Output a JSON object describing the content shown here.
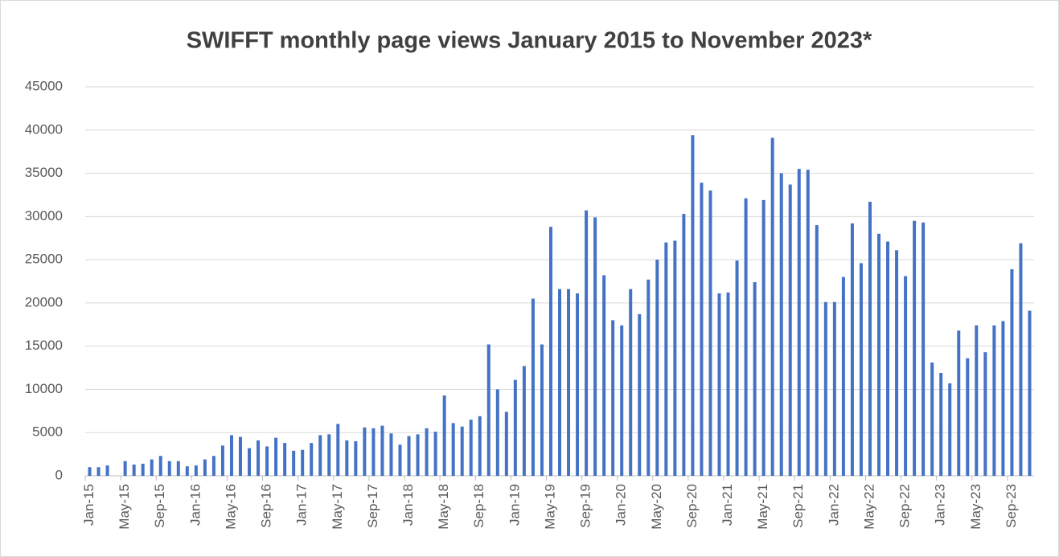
{
  "chart_data": {
    "type": "bar",
    "title": "SWIFFT monthly page views January 2015 to November 2023*",
    "categories": [
      "Jan-15",
      null,
      null,
      null,
      "May-15",
      null,
      null,
      null,
      "Sep-15",
      null,
      null,
      null,
      "Jan-16",
      null,
      null,
      null,
      "May-16",
      null,
      null,
      null,
      "Sep-16",
      null,
      null,
      null,
      "Jan-17",
      null,
      null,
      null,
      "May-17",
      null,
      null,
      null,
      "Sep-17",
      null,
      null,
      null,
      "Jan-18",
      null,
      null,
      null,
      "May-18",
      null,
      null,
      null,
      "Sep-18",
      null,
      null,
      null,
      "Jan-19",
      null,
      null,
      null,
      "May-19",
      null,
      null,
      null,
      "Sep-19",
      null,
      null,
      null,
      "Jan-20",
      null,
      null,
      null,
      "May-20",
      null,
      null,
      null,
      "Sep-20",
      null,
      null,
      null,
      "Jan-21",
      null,
      null,
      null,
      "May-21",
      null,
      null,
      null,
      "Sep-21",
      null,
      null,
      null,
      "Jan-22",
      null,
      null,
      null,
      "May-22",
      null,
      null,
      null,
      "Sep-22",
      null,
      null,
      null,
      "Jan-23",
      null,
      null,
      null,
      "May-23",
      null,
      null,
      null,
      "Sep-23",
      null,
      null
    ],
    "values": [
      1000,
      1000,
      1200,
      0,
      1700,
      1300,
      1400,
      1900,
      2300,
      1700,
      1700,
      1100,
      1200,
      1900,
      2300,
      3500,
      4700,
      4500,
      3200,
      4100,
      3400,
      4400,
      3800,
      2900,
      3000,
      3800,
      4700,
      4800,
      6000,
      4100,
      4000,
      5600,
      5500,
      5800,
      4900,
      3600,
      4600,
      4800,
      5500,
      5100,
      9300,
      6100,
      5700,
      6500,
      6900,
      15200,
      10000,
      7400,
      11100,
      12700,
      20500,
      15200,
      28800,
      21600,
      21600,
      21100,
      30700,
      29900,
      23200,
      18000,
      17400,
      21600,
      18700,
      22700,
      25000,
      27000,
      27200,
      30300,
      39400,
      33900,
      33000,
      21100,
      21200,
      24900,
      32100,
      22400,
      31900,
      39100,
      35000,
      33700,
      35500,
      35400,
      29000,
      20100,
      20100,
      23000,
      29200,
      24600,
      31700,
      28000,
      27100,
      26100,
      23100,
      29500,
      29300,
      13100,
      11900,
      10700,
      16800,
      13600,
      17400,
      14300,
      17400,
      17900,
      23900,
      26900,
      19100
    ],
    "color": "#4472c4",
    "ylim": [
      0,
      45000
    ],
    "yticks": [
      0,
      5000,
      10000,
      15000,
      20000,
      25000,
      30000,
      35000,
      40000,
      45000
    ],
    "grid": true
  }
}
